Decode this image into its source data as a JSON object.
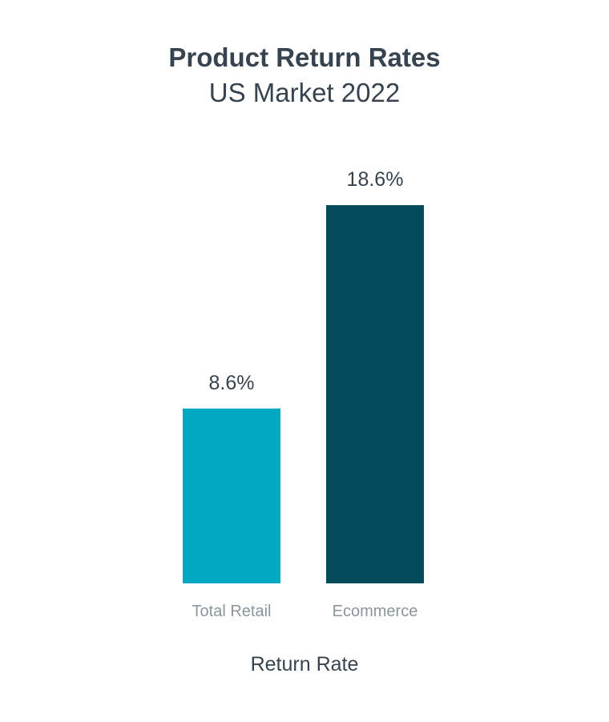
{
  "chart_data": {
    "type": "bar",
    "title": "Product Return Rates",
    "subtitle": "US Market 2022",
    "xlabel": "Return Rate",
    "ylabel": "",
    "categories": [
      "Total Retail",
      "Ecommerce"
    ],
    "values": [
      8.6,
      18.6
    ],
    "value_labels": [
      "8.6%",
      "18.6%"
    ],
    "colors": [
      "#00a8c1",
      "#024b5a"
    ],
    "ylim": [
      0,
      18.6
    ],
    "grid": false,
    "legend": "none"
  }
}
